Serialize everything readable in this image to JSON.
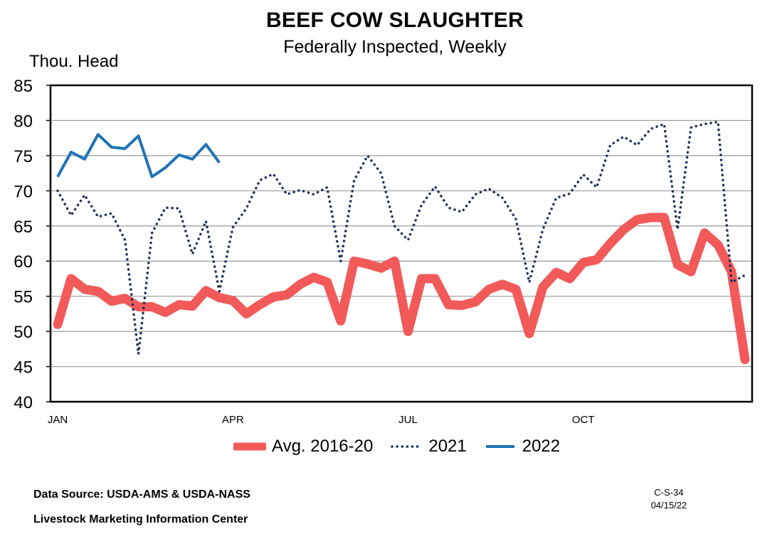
{
  "chart_data": {
    "type": "line",
    "title": "BEEF COW SLAUGHTER",
    "subtitle": "Federally Inspected, Weekly",
    "ylabel": "Thou. Head",
    "ylim": [
      40,
      85
    ],
    "yticks": [
      40,
      45,
      50,
      55,
      60,
      65,
      70,
      75,
      80,
      85
    ],
    "x_tick_labels": [
      {
        "label": "JAN",
        "week": 1
      },
      {
        "label": "APR",
        "week": 14
      },
      {
        "label": "JUL",
        "week": 27
      },
      {
        "label": "OCT",
        "week": 40
      }
    ],
    "x_range_weeks": [
      1,
      52
    ],
    "grid": "horizontal",
    "legend_position": "bottom",
    "series": [
      {
        "name": "Avg. 2016-20",
        "color": "#f25a5a",
        "style": "thick-solid",
        "values": [
          51,
          57.5,
          56,
          55.7,
          54.3,
          54.7,
          53.5,
          53.5,
          52.7,
          53.8,
          53.6,
          55.8,
          54.8,
          54.4,
          52.5,
          53.8,
          54.9,
          55.2,
          56.7,
          57.7,
          57,
          51.5,
          60,
          59.6,
          59,
          60,
          50,
          57.5,
          57.5,
          53.8,
          53.7,
          54.2,
          56,
          56.7,
          56,
          49.7,
          56.3,
          58.4,
          57.5,
          59.8,
          60.2,
          62.5,
          64.5,
          65.9,
          66.2,
          66.2,
          59.5,
          58.5,
          64,
          62.3,
          58.5,
          46
        ]
      },
      {
        "name": "2021",
        "color": "#1f2d5a",
        "style": "dotted",
        "values": [
          70,
          66.5,
          69.4,
          66.3,
          66.8,
          63,
          46.8,
          64,
          67.6,
          67.5,
          61,
          65.7,
          55.7,
          64.8,
          67.5,
          71.5,
          72.4,
          69.5,
          70.1,
          69.5,
          70.5,
          60,
          71.5,
          75,
          72.5,
          65,
          63,
          68,
          70.6,
          67.6,
          67,
          69.5,
          70.3,
          69,
          66,
          57,
          64.5,
          69,
          69.6,
          72.3,
          70.5,
          76.5,
          77.7,
          76.5,
          78.8,
          79.5,
          64.5,
          79,
          79.5,
          79.8,
          57,
          58
        ]
      },
      {
        "name": "2022",
        "color": "#1f73b7",
        "style": "solid",
        "values": [
          72,
          75.5,
          74.5,
          78,
          76.2,
          76,
          77.8,
          72,
          73.3,
          75.1,
          74.5,
          76.6,
          74
        ]
      }
    ]
  },
  "footer": {
    "source": "Data Source:  USDA-AMS & USDA-NASS",
    "center": "Livestock Marketing Information Center",
    "code": "C-S-34",
    "date": "04/15/22"
  }
}
